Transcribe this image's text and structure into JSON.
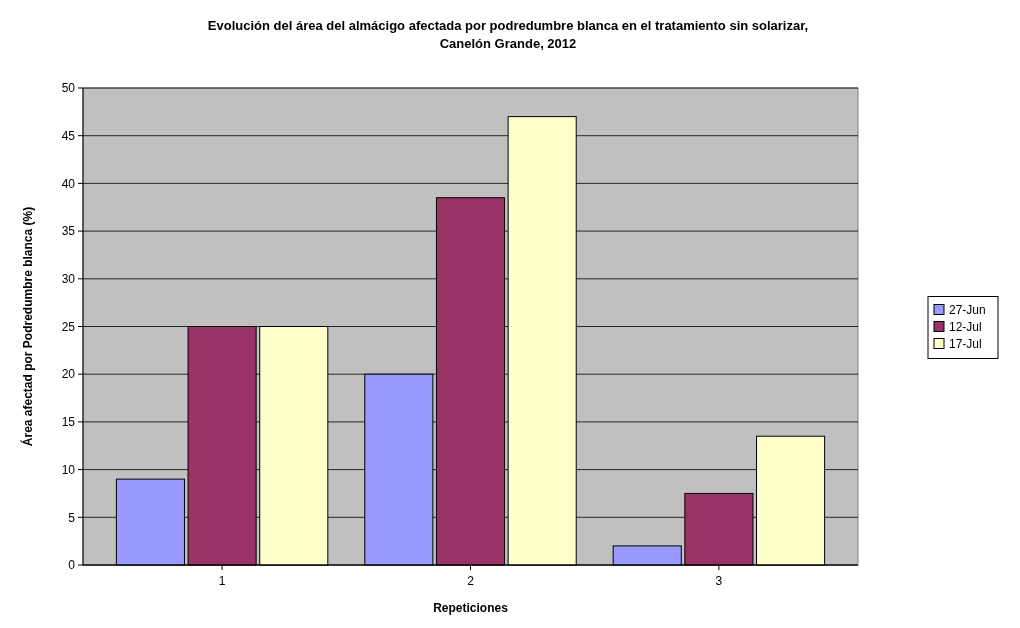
{
  "chart_data": {
    "type": "bar",
    "title": "Evolución del área del almácigo afectada por podredumbre blanca en el tratamiento sin solarizar, Canelón Grande, 2012",
    "xlabel": "Repeticiones",
    "ylabel": "Área afectad por Podredumbre blanca (%)",
    "categories": [
      "1",
      "2",
      "3"
    ],
    "series": [
      {
        "name": "27-Jun",
        "color": "#9999ff",
        "values": [
          9,
          20,
          2
        ]
      },
      {
        "name": "12-Jul",
        "color": "#993366",
        "values": [
          25,
          38.5,
          7.5
        ]
      },
      {
        "name": "17-Jul",
        "color": "#ffffcc",
        "values": [
          25,
          47,
          13.5
        ]
      }
    ],
    "ylim": [
      0,
      50
    ],
    "yticks": [
      0,
      5,
      10,
      15,
      20,
      25,
      30,
      35,
      40,
      45,
      50
    ],
    "grid": "y",
    "legend": "right"
  }
}
